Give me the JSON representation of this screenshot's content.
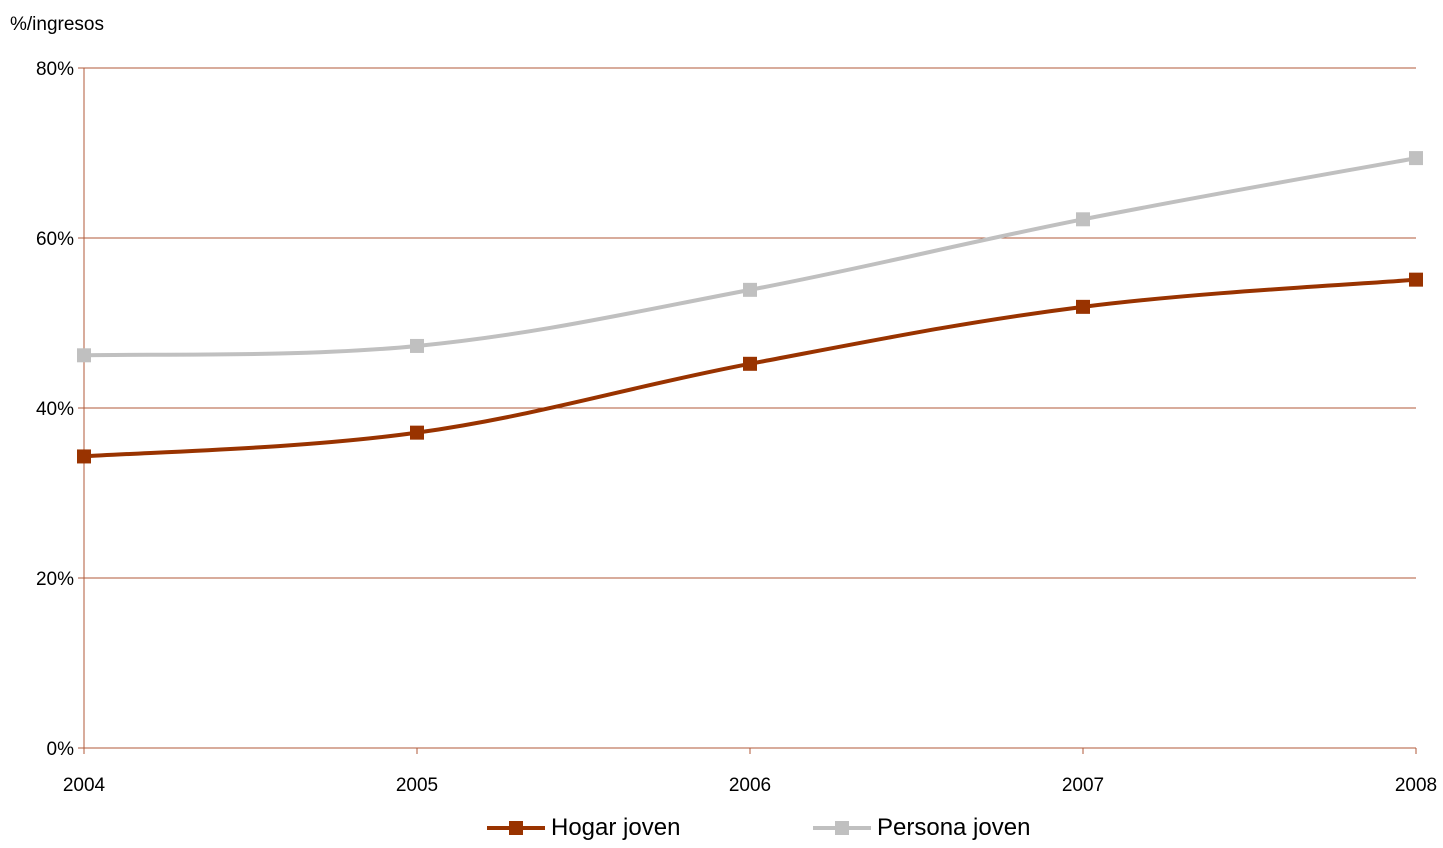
{
  "chart_data": {
    "type": "line",
    "ylabel": "%/ingresos",
    "x": [
      "2004",
      "2005",
      "2006",
      "2007",
      "2008"
    ],
    "ylim": [
      0,
      80
    ],
    "yticks": [
      "0%",
      "20%",
      "40%",
      "60%",
      "80%"
    ],
    "yticks_values": [
      0,
      20,
      40,
      60,
      80
    ],
    "grid": true,
    "legend_position": "bottom",
    "series": [
      {
        "name": "Hogar joven",
        "values": [
          34.3,
          37.1,
          45.2,
          51.9,
          55.1
        ],
        "color": "#993300"
      },
      {
        "name": "Persona joven",
        "values": [
          46.2,
          47.3,
          53.9,
          62.2,
          69.4
        ],
        "color": "#c0c0c0"
      }
    ],
    "axis_color": "#b05a3a"
  }
}
